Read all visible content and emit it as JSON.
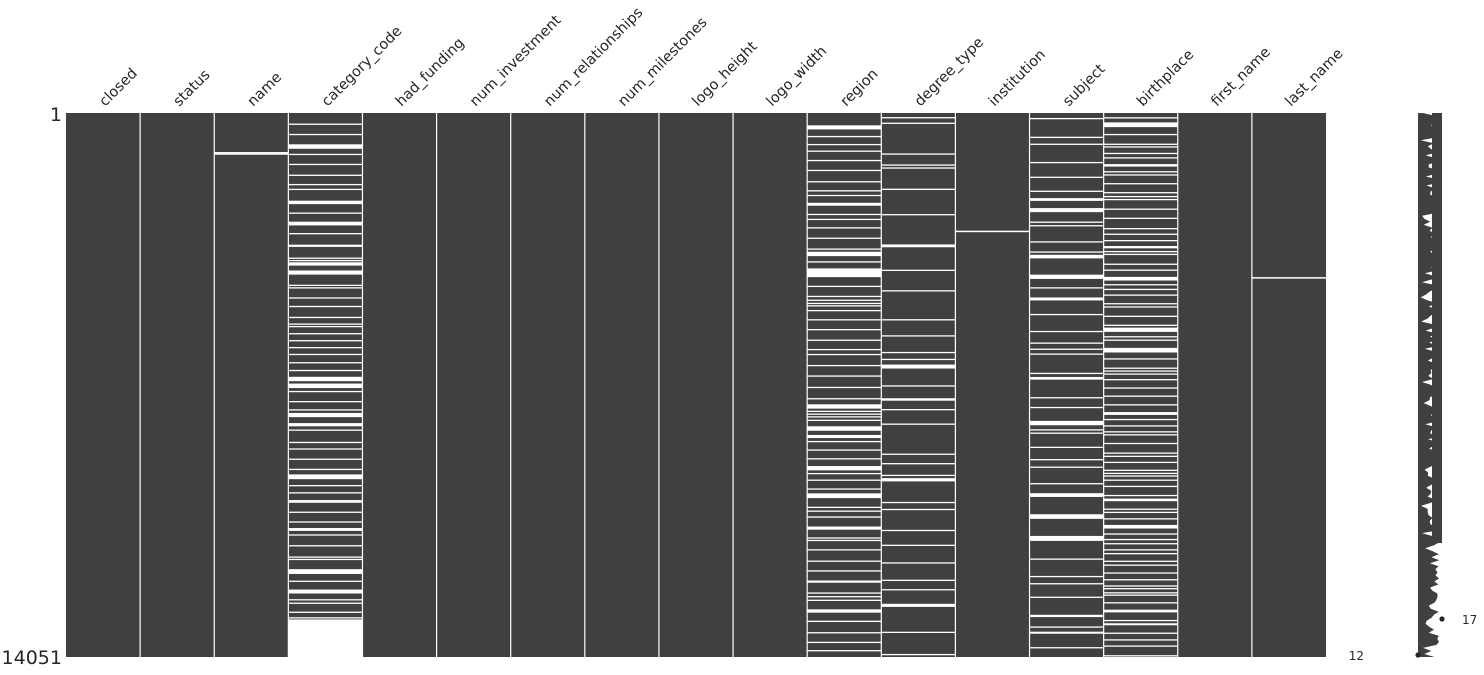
{
  "chart_data": {
    "type": "heatmap",
    "kind": "missing-value matrix",
    "columns": [
      "closed",
      "status",
      "name",
      "category_code",
      "had_funding",
      "num_investment",
      "num_relationships",
      "num_milestones",
      "logo_height",
      "logo_width",
      "region",
      "degree_type",
      "institution",
      "subject",
      "birthplace",
      "first_name",
      "last_name"
    ],
    "row_range": [
      1,
      14051
    ],
    "row_labels": [
      "1",
      "14051"
    ],
    "present_color": "#404040",
    "missing_color": "#ffffff",
    "missing_rows": {
      "name": [
        1010,
        1040
      ],
      "institution": [
        3040
      ],
      "last_name": [
        4240
      ]
    },
    "missing_runs": {
      "category_code": [
        [
          13080,
          14051
        ]
      ],
      "region": [
        [
          4080,
          4240
        ]
      ]
    },
    "missing_density": {
      "closed": 0,
      "status": 0,
      "name": 0,
      "category_code": 0.42,
      "had_funding": 0,
      "num_investment": 0,
      "num_relationships": 0,
      "num_milestones": 0,
      "logo_height": 0,
      "logo_width": 0,
      "region": 0.45,
      "degree_type": 0.18,
      "institution": 0,
      "subject": 0.28,
      "birthplace": 0.5,
      "first_name": 0,
      "last_name": 0
    },
    "sparkline": {
      "min_label": "12",
      "max_label": "17",
      "min_complete": 12,
      "max_complete": 17,
      "total_columns": 17
    }
  }
}
